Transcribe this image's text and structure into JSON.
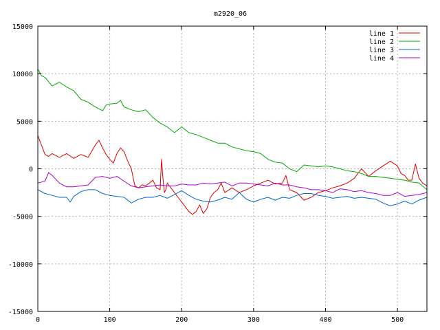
{
  "chart_data": {
    "type": "line",
    "title": "m2920_06",
    "xlabel": "",
    "ylabel": "",
    "xlim": [
      0,
      541
    ],
    "ylim": [
      -15000,
      15000
    ],
    "x_ticks": [
      0,
      100,
      200,
      300,
      400,
      500
    ],
    "y_ticks": [
      -15000,
      -10000,
      -5000,
      0,
      5000,
      10000,
      15000
    ],
    "grid": true,
    "legend_position": "top-right",
    "series": [
      {
        "name": "line 1",
        "color": "#dd0000",
        "x": [
          0,
          5,
          10,
          15,
          20,
          30,
          40,
          50,
          60,
          70,
          80,
          85,
          90,
          95,
          100,
          105,
          110,
          115,
          120,
          125,
          130,
          135,
          140,
          145,
          150,
          155,
          160,
          165,
          170,
          172,
          174,
          176,
          178,
          180,
          185,
          190,
          195,
          200,
          205,
          210,
          215,
          220,
          225,
          230,
          235,
          240,
          245,
          250,
          255,
          260,
          270,
          280,
          290,
          300,
          310,
          320,
          330,
          340,
          345,
          350,
          360,
          370,
          380,
          390,
          400,
          410,
          420,
          430,
          440,
          450,
          460,
          470,
          480,
          490,
          500,
          505,
          510,
          515,
          520,
          525,
          530,
          535,
          541
        ],
        "y": [
          3500,
          2500,
          1500,
          1300,
          1600,
          1200,
          1600,
          1100,
          1500,
          1200,
          2500,
          3000,
          2200,
          1500,
          1000,
          600,
          1600,
          2200,
          1800,
          800,
          0,
          -1800,
          -2000,
          -1700,
          -1800,
          -1500,
          -1200,
          -2000,
          -2200,
          1000,
          -1000,
          -2500,
          -2200,
          -1500,
          -2000,
          -2500,
          -3000,
          -3500,
          -4000,
          -4500,
          -4800,
          -4500,
          -3800,
          -4700,
          -4200,
          -3000,
          -2500,
          -2200,
          -1500,
          -2500,
          -2000,
          -2500,
          -2200,
          -1800,
          -1500,
          -1200,
          -1600,
          -1500,
          -700,
          -2200,
          -2500,
          -3300,
          -3000,
          -2500,
          -2300,
          -2000,
          -1800,
          -1500,
          -1000,
          0,
          -800,
          -200,
          300,
          800,
          300,
          -500,
          -700,
          -1200,
          -1200,
          500,
          -1000,
          -1500,
          -1800
        ]
      },
      {
        "name": "line 2",
        "color": "#00aa00",
        "x": [
          0,
          5,
          10,
          20,
          30,
          40,
          50,
          60,
          70,
          80,
          90,
          95,
          100,
          110,
          115,
          120,
          130,
          140,
          150,
          160,
          170,
          180,
          190,
          200,
          210,
          220,
          230,
          240,
          250,
          260,
          270,
          280,
          290,
          300,
          310,
          320,
          330,
          340,
          350,
          360,
          370,
          380,
          390,
          400,
          410,
          420,
          430,
          440,
          450,
          460,
          470,
          480,
          490,
          500,
          510,
          520,
          530,
          541
        ],
        "y": [
          10500,
          9800,
          9600,
          8700,
          9100,
          8600,
          8200,
          7300,
          7000,
          6500,
          6100,
          6700,
          6800,
          6900,
          7200,
          6500,
          6200,
          6000,
          6200,
          5400,
          4800,
          4400,
          3800,
          4400,
          3800,
          3600,
          3300,
          3000,
          2700,
          2700,
          2300,
          2100,
          1900,
          1800,
          1600,
          1000,
          700,
          600,
          0,
          -300,
          400,
          300,
          200,
          300,
          200,
          0,
          -200,
          -300,
          -500,
          -800,
          -800,
          -900,
          -1000,
          -1100,
          -1200,
          -1400,
          -1500,
          -2200
        ]
      },
      {
        "name": "line 3",
        "color": "#0066cc",
        "x": [
          0,
          10,
          20,
          30,
          40,
          45,
          50,
          60,
          70,
          80,
          90,
          100,
          110,
          120,
          130,
          140,
          150,
          160,
          170,
          180,
          190,
          200,
          210,
          220,
          230,
          240,
          250,
          260,
          270,
          280,
          290,
          300,
          310,
          320,
          330,
          340,
          350,
          360,
          370,
          380,
          390,
          400,
          410,
          420,
          430,
          440,
          450,
          460,
          470,
          480,
          490,
          500,
          510,
          520,
          530,
          541
        ],
        "y": [
          -2200,
          -2600,
          -2800,
          -3000,
          -3000,
          -3500,
          -2900,
          -2400,
          -2200,
          -2200,
          -2600,
          -2800,
          -2900,
          -3000,
          -3600,
          -3200,
          -3000,
          -3000,
          -2800,
          -3100,
          -2700,
          -2300,
          -2800,
          -3200,
          -3400,
          -3500,
          -3300,
          -3000,
          -3200,
          -2500,
          -3200,
          -3500,
          -3200,
          -3000,
          -3300,
          -3000,
          -3100,
          -2800,
          -2600,
          -2600,
          -2800,
          -2900,
          -3100,
          -3000,
          -2900,
          -3100,
          -3000,
          -3100,
          -3200,
          -3600,
          -3900,
          -3700,
          -3400,
          -3700,
          -3300,
          -3000
        ]
      },
      {
        "name": "line 4",
        "color": "#aa00cc",
        "x": [
          0,
          10,
          15,
          20,
          30,
          40,
          50,
          60,
          70,
          80,
          90,
          100,
          110,
          120,
          130,
          140,
          150,
          160,
          170,
          180,
          190,
          200,
          210,
          220,
          230,
          240,
          250,
          260,
          270,
          280,
          290,
          300,
          310,
          320,
          330,
          340,
          350,
          360,
          370,
          380,
          390,
          400,
          410,
          420,
          430,
          440,
          450,
          460,
          470,
          480,
          490,
          500,
          510,
          520,
          530,
          541
        ],
        "y": [
          -1500,
          -1300,
          -400,
          -700,
          -1500,
          -1900,
          -1900,
          -1800,
          -1700,
          -900,
          -800,
          -1000,
          -800,
          -1300,
          -1800,
          -2000,
          -1900,
          -1800,
          -1700,
          -1800,
          -1800,
          -1600,
          -1700,
          -1700,
          -1500,
          -1600,
          -1500,
          -1400,
          -1800,
          -1500,
          -1500,
          -1600,
          -1700,
          -1800,
          -1500,
          -1700,
          -1700,
          -1900,
          -2000,
          -2200,
          -2200,
          -2300,
          -2500,
          -2100,
          -2200,
          -2400,
          -2300,
          -2500,
          -2600,
          -2800,
          -2800,
          -2500,
          -2900,
          -2800,
          -2700,
          -2500
        ]
      }
    ]
  }
}
